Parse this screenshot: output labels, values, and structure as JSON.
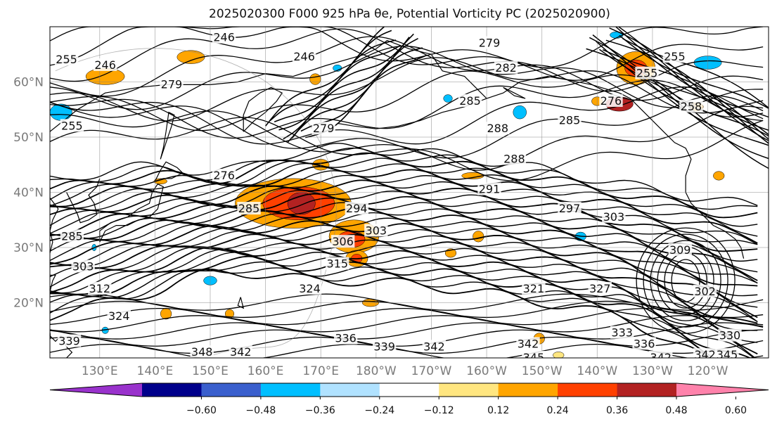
{
  "title": "2025020300 F000 925 hPa θe, Potential Vorticity PC (2025020900)",
  "map": {
    "lat_labels": [
      "60°N",
      "50°N",
      "40°N",
      "30°N",
      "20°N"
    ],
    "lon_labels": [
      "130°E",
      "140°E",
      "150°E",
      "160°E",
      "170°E",
      "180°W",
      "170°W",
      "160°W",
      "150°W",
      "140°W",
      "130°W",
      "120°W"
    ],
    "contour_labels": [
      {
        "text": "246",
        "lon": 152.5,
        "lat": 68
      },
      {
        "text": "246",
        "lon": 131,
        "lat": 63
      },
      {
        "text": "246",
        "lon": 167,
        "lat": 64.5
      },
      {
        "text": "255",
        "lon": 124,
        "lat": 64
      },
      {
        "text": "279",
        "lon": 143,
        "lat": 59.5
      },
      {
        "text": "279",
        "lon": 170.5,
        "lat": 51.5
      },
      {
        "text": "279",
        "lon": -159.5,
        "lat": 67
      },
      {
        "text": "282",
        "lon": -156.5,
        "lat": 62.5
      },
      {
        "text": "285",
        "lon": -163,
        "lat": 56.5
      },
      {
        "text": "288",
        "lon": -158,
        "lat": 51.5
      },
      {
        "text": "285",
        "lon": -145,
        "lat": 53
      },
      {
        "text": "288",
        "lon": -155,
        "lat": 46
      },
      {
        "text": "291",
        "lon": -159.5,
        "lat": 40.5
      },
      {
        "text": "297",
        "lon": -145,
        "lat": 37
      },
      {
        "text": "303",
        "lon": -137,
        "lat": 35.5
      },
      {
        "text": "255",
        "lon": -126,
        "lat": 64.5
      },
      {
        "text": "255",
        "lon": -131,
        "lat": 61.5
      },
      {
        "text": "258",
        "lon": -123,
        "lat": 55.5
      },
      {
        "text": "276",
        "lon": -137.5,
        "lat": 56.5
      },
      {
        "text": "255",
        "lon": 125,
        "lat": 52
      },
      {
        "text": "276",
        "lon": 152.5,
        "lat": 43
      },
      {
        "text": "285",
        "lon": 157,
        "lat": 37
      },
      {
        "text": "285",
        "lon": 125,
        "lat": 32
      },
      {
        "text": "303",
        "lon": 127,
        "lat": 26.5
      },
      {
        "text": "312",
        "lon": 130,
        "lat": 22.5
      },
      {
        "text": "294",
        "lon": 176.5,
        "lat": 37
      },
      {
        "text": "303",
        "lon": 180,
        "lat": 33
      },
      {
        "text": "306",
        "lon": 174,
        "lat": 31
      },
      {
        "text": "315",
        "lon": 173,
        "lat": 27
      },
      {
        "text": "324",
        "lon": 168,
        "lat": 22.5
      },
      {
        "text": "321",
        "lon": -151.5,
        "lat": 22.5
      },
      {
        "text": "327",
        "lon": -139.5,
        "lat": 22.5
      },
      {
        "text": "333",
        "lon": -135.5,
        "lat": 14.5
      },
      {
        "text": "336",
        "lon": 174.5,
        "lat": 13.5
      },
      {
        "text": "339",
        "lon": 181.5,
        "lat": 12
      },
      {
        "text": "342",
        "lon": -169.5,
        "lat": 12
      },
      {
        "text": "342",
        "lon": -152.5,
        "lat": 12.5
      },
      {
        "text": "345",
        "lon": -151.5,
        "lat": 10
      },
      {
        "text": "336",
        "lon": -131.5,
        "lat": 12.5
      },
      {
        "text": "342",
        "lon": -128.5,
        "lat": 10
      },
      {
        "text": "342",
        "lon": -120.5,
        "lat": 10.5
      },
      {
        "text": "345",
        "lon": -116.5,
        "lat": 10.5
      },
      {
        "text": "330",
        "lon": -116,
        "lat": 14
      },
      {
        "text": "309",
        "lon": -125,
        "lat": 29.5
      },
      {
        "text": "302",
        "lon": -120.5,
        "lat": 22
      },
      {
        "text": "339",
        "lon": 124.5,
        "lat": 13
      },
      {
        "text": "348",
        "lon": 148.5,
        "lat": 11
      },
      {
        "text": "342",
        "lon": 155.5,
        "lat": 11
      },
      {
        "text": "324",
        "lon": 133.5,
        "lat": 17.5
      }
    ],
    "pv_patches": [
      {
        "color": "#ffa500",
        "lon": 165,
        "lat": 38,
        "rlon": 10.5,
        "rlat": 4.5
      },
      {
        "color": "#ff4000",
        "lon": 166,
        "lat": 38,
        "rlon": 6.5,
        "rlat": 3
      },
      {
        "color": "#b22222",
        "lon": 166.5,
        "lat": 38,
        "rlon": 2.5,
        "rlat": 2
      },
      {
        "color": "#ffa500",
        "lon": 176,
        "lat": 32,
        "rlon": 4.5,
        "rlat": 3
      },
      {
        "color": "#ff4000",
        "lon": 175.5,
        "lat": 31.5,
        "rlon": 2.5,
        "rlat": 1.5
      },
      {
        "color": "#ffa500",
        "lon": 176.5,
        "lat": 28,
        "rlon": 2,
        "rlat": 1.5
      },
      {
        "color": "#ff4000",
        "lon": 176.5,
        "lat": 28,
        "rlon": 1,
        "rlat": 0.8
      },
      {
        "color": "#ffa500",
        "lon": 170,
        "lat": 45,
        "rlon": 1.5,
        "rlat": 1
      },
      {
        "color": "#ffa500",
        "lon": 131,
        "lat": 61,
        "rlon": 3.5,
        "rlat": 1.5
      },
      {
        "color": "#ffa500",
        "lon": -133,
        "lat": 62.5,
        "rlon": 3.5,
        "rlat": 3
      },
      {
        "color": "#ff4000",
        "lon": -133,
        "lat": 62.5,
        "rlon": 2,
        "rlat": 1.5
      },
      {
        "color": "#b22222",
        "lon": -136,
        "lat": 56,
        "rlon": 2.5,
        "rlat": 1.3
      },
      {
        "color": "#ffa500",
        "lon": -140,
        "lat": 56.5,
        "rlon": 1,
        "rlat": 0.8
      },
      {
        "color": "#ffa500",
        "lon": 146.5,
        "lat": 64.5,
        "rlon": 2.5,
        "rlat": 1.2
      },
      {
        "color": "#ffa500",
        "lon": 169,
        "lat": 60.5,
        "rlon": 1,
        "rlat": 1
      },
      {
        "color": "#ffa500",
        "lon": -162.5,
        "lat": 43,
        "rlon": 2,
        "rlat": 0.6
      },
      {
        "color": "#ffa500",
        "lon": -161.5,
        "lat": 32,
        "rlon": 1,
        "rlat": 1
      },
      {
        "color": "#ffa500",
        "lon": -166.5,
        "lat": 29,
        "rlon": 1,
        "rlat": 0.8
      },
      {
        "color": "#ffa500",
        "lon": 179,
        "lat": 20,
        "rlon": 1.5,
        "rlat": 0.7
      },
      {
        "color": "#ffa500",
        "lon": -150.5,
        "lat": 13.5,
        "rlon": 1,
        "rlat": 1
      },
      {
        "color": "#ffa500",
        "lon": 142,
        "lat": 18,
        "rlon": 1,
        "rlat": 1
      },
      {
        "color": "#ffa500",
        "lon": 153.5,
        "lat": 18,
        "rlon": 0.8,
        "rlat": 0.8
      },
      {
        "color": "#ffe680",
        "lon": -147,
        "lat": 10.5,
        "rlon": 1,
        "rlat": 0.6
      },
      {
        "color": "#ffa500",
        "lon": -122,
        "lat": 55.5,
        "rlon": 1.2,
        "rlat": 0.8
      },
      {
        "color": "#ffa500",
        "lon": 141,
        "lat": 42,
        "rlon": 1.2,
        "rlat": 0.5
      },
      {
        "color": "#ffa500",
        "lon": -118,
        "lat": 43,
        "rlon": 1,
        "rlat": 0.8
      },
      {
        "color": "#00bfff",
        "lon": 123,
        "lat": 54.5,
        "rlon": 2,
        "rlat": 1.5
      },
      {
        "color": "#00bfff",
        "lon": -154,
        "lat": 54.5,
        "rlon": 1.2,
        "rlat": 1.2
      },
      {
        "color": "#00bfff",
        "lon": -120,
        "lat": 63.5,
        "rlon": 2.5,
        "rlat": 1.2
      },
      {
        "color": "#00bfff",
        "lon": -136.5,
        "lat": 68.5,
        "rlon": 1.2,
        "rlat": 0.6
      },
      {
        "color": "#00bfff",
        "lon": -167,
        "lat": 57,
        "rlon": 0.8,
        "rlat": 0.7
      },
      {
        "color": "#00bfff",
        "lon": 150,
        "lat": 24,
        "rlon": 1.2,
        "rlat": 0.8
      },
      {
        "color": "#00bfff",
        "lon": -143,
        "lat": 32,
        "rlon": 1,
        "rlat": 0.8
      },
      {
        "color": "#00bfff",
        "lon": 173,
        "lat": 62.5,
        "rlon": 0.8,
        "rlat": 0.6
      },
      {
        "color": "#00bfff",
        "lon": 120.5,
        "lat": 14,
        "rlon": 0.6,
        "rlat": 1.5
      },
      {
        "color": "#00bfff",
        "lon": 131,
        "lat": 15,
        "rlon": 0.6,
        "rlat": 0.6
      },
      {
        "color": "#00bfff",
        "lon": 129,
        "lat": 30,
        "rlon": 0.4,
        "rlat": 0.6
      }
    ],
    "colors": {
      "contour": "#000000",
      "grid": "#808080",
      "coast": "#000000",
      "background": "#ffffff"
    }
  },
  "colorbar": {
    "colors": [
      "#9932cc",
      "#00008b",
      "#3a5fcd",
      "#00bfff",
      "#b0e2ff",
      "#ffffff",
      "#ffe680",
      "#ffa500",
      "#ff4000",
      "#b22222",
      "#ff82ab"
    ],
    "tick_labels": [
      "−0.60",
      "−0.48",
      "−0.36",
      "−0.24",
      "−0.12",
      "0.12",
      "0.24",
      "0.36",
      "0.48",
      "0.60"
    ]
  }
}
